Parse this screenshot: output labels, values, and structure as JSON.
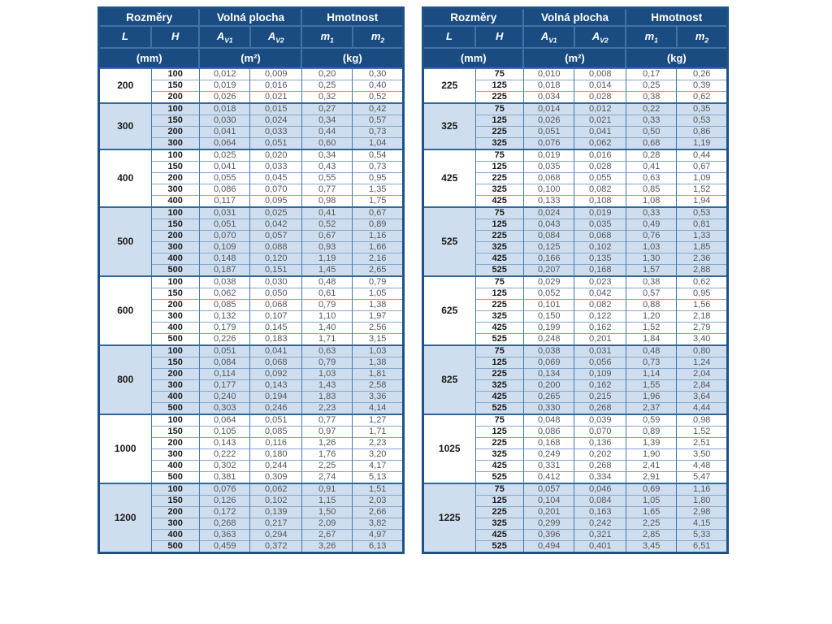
{
  "colors": {
    "header_navy": "#1a4c82",
    "band_light_blue": "#cfdeee",
    "border_blue": "#3f73a7",
    "value_text_gray": "#55565a"
  },
  "header": {
    "groups": [
      "Rozměry",
      "Volná plocha",
      "Hmotnost"
    ],
    "cols": [
      {
        "base": "L",
        "sub": ""
      },
      {
        "base": "H",
        "sub": ""
      },
      {
        "base": "A",
        "sub": "V1"
      },
      {
        "base": "A",
        "sub": "V2"
      },
      {
        "base": "m",
        "sub": "1"
      },
      {
        "base": "m",
        "sub": "2"
      }
    ],
    "units": [
      "(mm)",
      "(m²)",
      "(kg)"
    ]
  },
  "tables": [
    {
      "name": "left",
      "groups": [
        {
          "L": "200",
          "rows": [
            [
              "100",
              "0,012",
              "0,009",
              "0,20",
              "0,30"
            ],
            [
              "150",
              "0,019",
              "0,016",
              "0,25",
              "0,40"
            ],
            [
              "200",
              "0,026",
              "0,021",
              "0,32",
              "0,52"
            ]
          ]
        },
        {
          "L": "300",
          "rows": [
            [
              "100",
              "0,018",
              "0,015",
              "0,27",
              "0,42"
            ],
            [
              "150",
              "0,030",
              "0,024",
              "0,34",
              "0,57"
            ],
            [
              "200",
              "0,041",
              "0,033",
              "0,44",
              "0,73"
            ],
            [
              "300",
              "0,064",
              "0,051",
              "0,60",
              "1,04"
            ]
          ]
        },
        {
          "L": "400",
          "rows": [
            [
              "100",
              "0,025",
              "0,020",
              "0,34",
              "0,54"
            ],
            [
              "150",
              "0,041",
              "0,033",
              "0,43",
              "0,73"
            ],
            [
              "200",
              "0,055",
              "0,045",
              "0,55",
              "0,95"
            ],
            [
              "300",
              "0,086",
              "0,070",
              "0,77",
              "1,35"
            ],
            [
              "400",
              "0,117",
              "0,095",
              "0,98",
              "1,75"
            ]
          ]
        },
        {
          "L": "500",
          "rows": [
            [
              "100",
              "0,031",
              "0,025",
              "0,41",
              "0,67"
            ],
            [
              "150",
              "0,051",
              "0,042",
              "0,52",
              "0,89"
            ],
            [
              "200",
              "0,070",
              "0,057",
              "0,67",
              "1,16"
            ],
            [
              "300",
              "0,109",
              "0,088",
              "0,93",
              "1,66"
            ],
            [
              "400",
              "0,148",
              "0,120",
              "1,19",
              "2,16"
            ],
            [
              "500",
              "0,187",
              "0,151",
              "1,45",
              "2,65"
            ]
          ]
        },
        {
          "L": "600",
          "rows": [
            [
              "100",
              "0,038",
              "0,030",
              "0,48",
              "0,79"
            ],
            [
              "150",
              "0,062",
              "0,050",
              "0,61",
              "1,05"
            ],
            [
              "200",
              "0,085",
              "0,068",
              "0,79",
              "1,38"
            ],
            [
              "300",
              "0,132",
              "0,107",
              "1,10",
              "1,97"
            ],
            [
              "400",
              "0,179",
              "0,145",
              "1,40",
              "2,56"
            ],
            [
              "500",
              "0,226",
              "0,183",
              "1,71",
              "3,15"
            ]
          ]
        },
        {
          "L": "800",
          "rows": [
            [
              "100",
              "0,051",
              "0,041",
              "0,63",
              "1,03"
            ],
            [
              "150",
              "0,084",
              "0,068",
              "0,79",
              "1,38"
            ],
            [
              "200",
              "0,114",
              "0,092",
              "1,03",
              "1,81"
            ],
            [
              "300",
              "0,177",
              "0,143",
              "1,43",
              "2,58"
            ],
            [
              "400",
              "0,240",
              "0,194",
              "1,83",
              "3,36"
            ],
            [
              "500",
              "0,303",
              "0,246",
              "2,23",
              "4,14"
            ]
          ]
        },
        {
          "L": "1000",
          "rows": [
            [
              "100",
              "0,064",
              "0,051",
              "0,77",
              "1,27"
            ],
            [
              "150",
              "0,105",
              "0,085",
              "0,97",
              "1,71"
            ],
            [
              "200",
              "0,143",
              "0,116",
              "1,26",
              "2,23"
            ],
            [
              "300",
              "0,222",
              "0,180",
              "1,76",
              "3,20"
            ],
            [
              "400",
              "0,302",
              "0,244",
              "2,25",
              "4,17"
            ],
            [
              "500",
              "0,381",
              "0,309",
              "2,74",
              "5,13"
            ]
          ]
        },
        {
          "L": "1200",
          "rows": [
            [
              "100",
              "0,076",
              "0,062",
              "0,91",
              "1,51"
            ],
            [
              "150",
              "0,126",
              "0,102",
              "1,15",
              "2,03"
            ],
            [
              "200",
              "0,172",
              "0,139",
              "1,50",
              "2,66"
            ],
            [
              "300",
              "0,268",
              "0,217",
              "2,09",
              "3,82"
            ],
            [
              "400",
              "0,363",
              "0,294",
              "2,67",
              "4,97"
            ],
            [
              "500",
              "0,459",
              "0,372",
              "3,26",
              "6,13"
            ]
          ]
        }
      ]
    },
    {
      "name": "right",
      "groups": [
        {
          "L": "225",
          "rows": [
            [
              "75",
              "0,010",
              "0,008",
              "0,17",
              "0,26"
            ],
            [
              "125",
              "0,018",
              "0,014",
              "0,25",
              "0,39"
            ],
            [
              "225",
              "0,034",
              "0,028",
              "0,38",
              "0,62"
            ]
          ]
        },
        {
          "L": "325",
          "rows": [
            [
              "75",
              "0,014",
              "0,012",
              "0,22",
              "0,35"
            ],
            [
              "125",
              "0,026",
              "0,021",
              "0,33",
              "0,53"
            ],
            [
              "225",
              "0,051",
              "0,041",
              "0,50",
              "0,86"
            ],
            [
              "325",
              "0,076",
              "0,062",
              "0,68",
              "1,19"
            ]
          ]
        },
        {
          "L": "425",
          "rows": [
            [
              "75",
              "0,019",
              "0,016",
              "0,28",
              "0,44"
            ],
            [
              "125",
              "0,035",
              "0,028",
              "0,41",
              "0,67"
            ],
            [
              "225",
              "0,068",
              "0,055",
              "0,63",
              "1,09"
            ],
            [
              "325",
              "0,100",
              "0,082",
              "0,85",
              "1,52"
            ],
            [
              "425",
              "0,133",
              "0,108",
              "1,08",
              "1,94"
            ]
          ]
        },
        {
          "L": "525",
          "rows": [
            [
              "75",
              "0,024",
              "0,019",
              "0,33",
              "0,53"
            ],
            [
              "125",
              "0,043",
              "0,035",
              "0,49",
              "0,81"
            ],
            [
              "225",
              "0,084",
              "0,068",
              "0,76",
              "1,33"
            ],
            [
              "325",
              "0,125",
              "0,102",
              "1,03",
              "1,85"
            ],
            [
              "425",
              "0,166",
              "0,135",
              "1,30",
              "2,36"
            ],
            [
              "525",
              "0,207",
              "0,168",
              "1,57",
              "2,88"
            ]
          ]
        },
        {
          "L": "625",
          "rows": [
            [
              "75",
              "0,029",
              "0,023",
              "0,38",
              "0,62"
            ],
            [
              "125",
              "0,052",
              "0,042",
              "0,57",
              "0,95"
            ],
            [
              "225",
              "0,101",
              "0,082",
              "0,88",
              "1,56"
            ],
            [
              "325",
              "0,150",
              "0,122",
              "1,20",
              "2,18"
            ],
            [
              "425",
              "0,199",
              "0,162",
              "1,52",
              "2,79"
            ],
            [
              "525",
              "0,248",
              "0,201",
              "1,84",
              "3,40"
            ]
          ]
        },
        {
          "L": "825",
          "rows": [
            [
              "75",
              "0,038",
              "0,031",
              "0,48",
              "0,80"
            ],
            [
              "125",
              "0,069",
              "0,056",
              "0,73",
              "1,24"
            ],
            [
              "225",
              "0,134",
              "0,109",
              "1,14",
              "2,04"
            ],
            [
              "325",
              "0,200",
              "0,162",
              "1,55",
              "2,84"
            ],
            [
              "425",
              "0,265",
              "0,215",
              "1,96",
              "3,64"
            ],
            [
              "525",
              "0,330",
              "0,268",
              "2,37",
              "4,44"
            ]
          ]
        },
        {
          "L": "1025",
          "rows": [
            [
              "75",
              "0,048",
              "0,039",
              "0,59",
              "0,98"
            ],
            [
              "125",
              "0,086",
              "0,070",
              "0,89",
              "1,52"
            ],
            [
              "225",
              "0,168",
              "0,136",
              "1,39",
              "2,51"
            ],
            [
              "325",
              "0,249",
              "0,202",
              "1,90",
              "3,50"
            ],
            [
              "425",
              "0,331",
              "0,268",
              "2,41",
              "4,48"
            ],
            [
              "525",
              "0,412",
              "0,334",
              "2,91",
              "5,47"
            ]
          ]
        },
        {
          "L": "1225",
          "rows": [
            [
              "75",
              "0,057",
              "0,046",
              "0,69",
              "1,16"
            ],
            [
              "125",
              "0,104",
              "0,084",
              "1,05",
              "1,80"
            ],
            [
              "225",
              "0,201",
              "0,163",
              "1,65",
              "2,98"
            ],
            [
              "325",
              "0,299",
              "0,242",
              "2,25",
              "4,15"
            ],
            [
              "425",
              "0,396",
              "0,321",
              "2,85",
              "5,33"
            ],
            [
              "525",
              "0,494",
              "0,401",
              "3,45",
              "6,51"
            ]
          ]
        }
      ]
    }
  ]
}
